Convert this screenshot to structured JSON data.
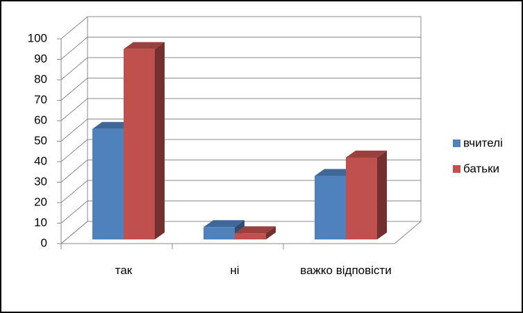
{
  "chart_data": {
    "type": "bar3d",
    "categories": [
      "так",
      "ні",
      "важко відповісти"
    ],
    "series": [
      {
        "name": "вчителі",
        "color": "#4f81bd",
        "values": [
          54,
          6,
          31
        ]
      },
      {
        "name": "батьки",
        "color": "#c0504d",
        "values": [
          93,
          3,
          40
        ]
      }
    ],
    "ylim": [
      0,
      100
    ],
    "yticks": [
      0,
      10,
      20,
      30,
      40,
      50,
      60,
      70,
      80,
      90,
      100
    ],
    "grid": true,
    "legend": "right"
  }
}
